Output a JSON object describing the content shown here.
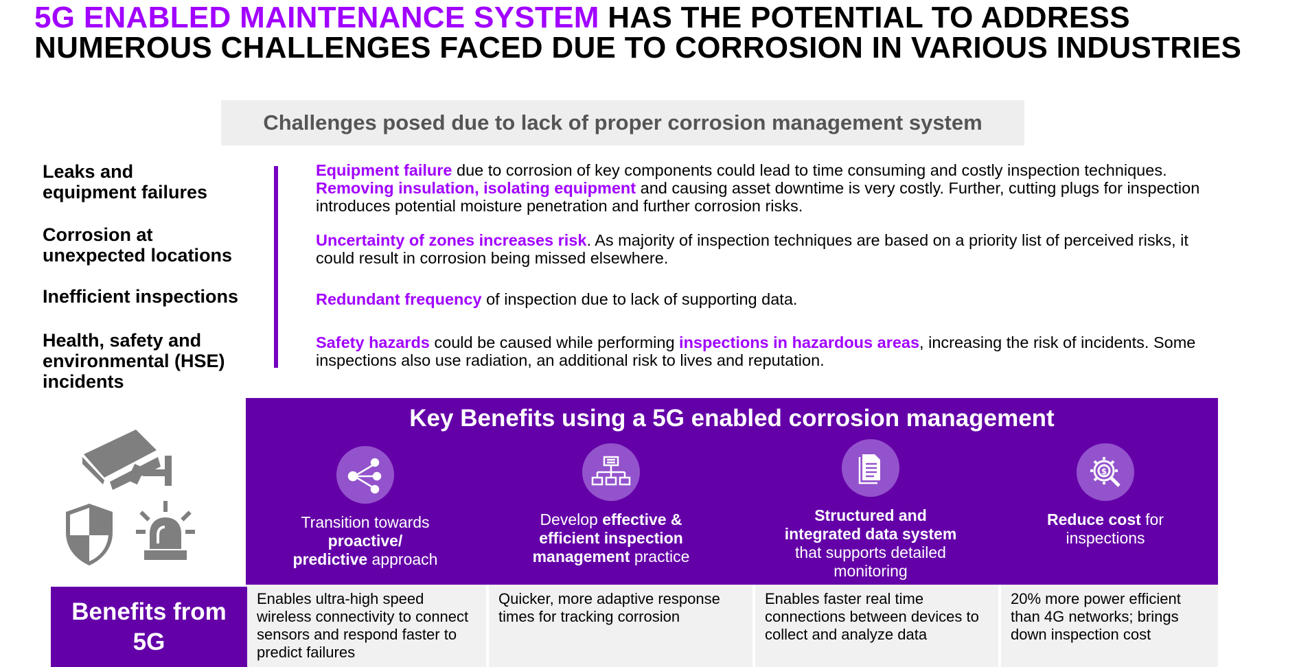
{
  "title": {
    "accent": "5G ENABLED MAINTENANCE SYSTEM",
    "line1_rest": " HAS THE POTENTIAL TO ADDRESS",
    "line2": "NUMEROUS CHALLENGES FACED DUE TO CORROSION IN VARIOUS INDUSTRIES"
  },
  "challenges": {
    "header": "Challenges posed due to lack of proper corrosion management system",
    "labels": {
      "leaks_l1": "Leaks and",
      "leaks_l2": "equipment failures",
      "corrosion_l1": "Corrosion at",
      "corrosion_l2": "unexpected locations",
      "inefficient": "Inefficient inspections",
      "hse_l1": "Health, safety and",
      "hse_l2": "environmental (HSE)",
      "hse_l3": "incidents"
    },
    "leaks": {
      "hl1": "Equipment failure",
      "t1": " due to corrosion of key components could lead to time consuming and costly inspection techniques. ",
      "hl2": "Removing insulation, isolating equipment",
      "t2": " and causing asset downtime is very costly. Further, cutting plugs for inspection introduces potential moisture penetration and further corrosion risks."
    },
    "corrosion": {
      "hl1": "Uncertainty of zones increases risk",
      "t1": ". As majority of  inspection techniques are based on a priority list of perceived risks, it could result in corrosion being missed elsewhere."
    },
    "inefficient": {
      "hl1": "Redundant frequency",
      "t1": " of inspection due to lack of supporting data."
    },
    "hse": {
      "hl1": "Safety hazards",
      "t1": " could be caused while performing ",
      "hl2": "inspections in hazardous areas",
      "t2": ", increasing the risk of incidents. Some inspections also use radiation, an additional risk to lives and reputation."
    }
  },
  "benefits_panel": {
    "title": "Key Benefits using a 5G enabled corrosion management",
    "b1": {
      "p1": "Transition towards",
      "b1": "proactive/",
      "b2": "predictive",
      "p2": " approach"
    },
    "b2": {
      "p1": "Develop ",
      "b1": "effective &",
      "b2": "efficient inspection",
      "b3": "management",
      "p2": " practice"
    },
    "b3": {
      "b1": "Structured and",
      "b2": "integrated data system",
      "p1": "that supports detailed",
      "p2": "monitoring"
    },
    "b4": {
      "b1": "Reduce cost",
      "p1": " for",
      "p2": "inspections"
    }
  },
  "five_g": {
    "label_l1": "Benefits from",
    "label_l2": "5G",
    "cells": [
      "Enables ultra-high speed wireless connectivity to connect sensors and respond faster to predict failures",
      "Quicker, more adaptive response times for tracking corrosion",
      "Enables faster real time connections between devices to collect and analyze data",
      "20%  more power efficient than 4G networks; brings down inspection cost"
    ]
  },
  "colors": {
    "accent": "#a100ff",
    "panel_purple": "#6400a8",
    "divider_purple": "#7500c0",
    "icon_circle": "#9353cc",
    "icon_gray": "#7f7f7f",
    "header_bg": "#eeeeee",
    "cell_bg": "#f1f1f1"
  },
  "icons": [
    "share-network-icon",
    "org-chart-icon",
    "document-icon",
    "cost-gear-search-icon",
    "security-camera-icon",
    "shield-icon",
    "alarm-siren-icon"
  ]
}
